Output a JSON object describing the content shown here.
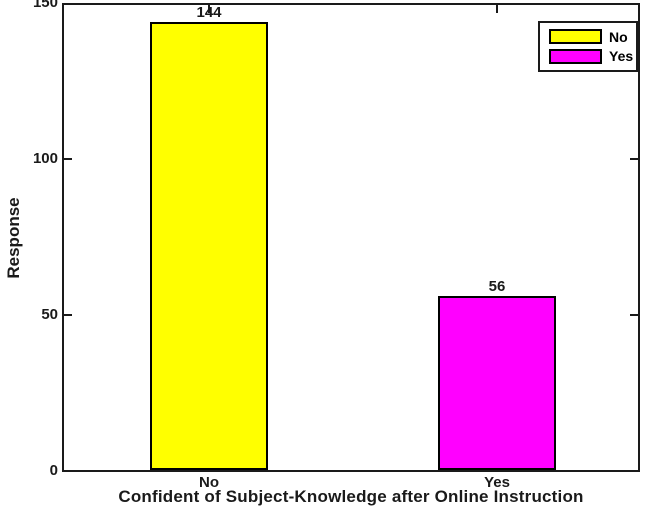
{
  "figure": {
    "background_color": "#ffffff",
    "axis_color": "#1a1a1a"
  },
  "chart_data": {
    "type": "bar",
    "title": "",
    "xlabel": "Confident of Subject-Knowledge after Online Instruction",
    "ylabel": "Response",
    "categories": [
      "No",
      "Yes"
    ],
    "values": [
      144,
      56
    ],
    "bar_value_labels": [
      "144",
      "56"
    ],
    "bar_colors": [
      "#ffff00",
      "#ff00ff"
    ],
    "bar_edge_color": "#000000",
    "ylim": [
      0,
      150
    ],
    "yticks": [
      0,
      50,
      100,
      150
    ],
    "grid": false,
    "legend": {
      "position": "top-right",
      "entries": [
        {
          "label": "No",
          "color": "#ffff00"
        },
        {
          "label": "Yes",
          "color": "#ff00ff"
        }
      ]
    }
  }
}
